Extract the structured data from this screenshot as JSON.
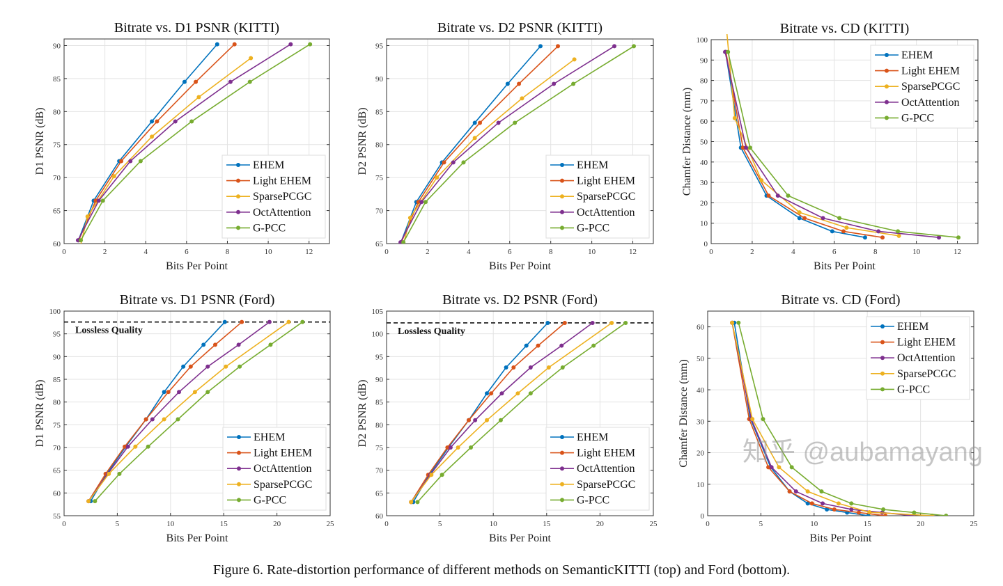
{
  "caption": "Figure 6. Rate-distortion performance of different methods on SemanticKITTI (top) and Ford (bottom).",
  "watermark": "知乎 @aubamayang",
  "chart_data": [
    {
      "type": "line",
      "title": "Bitrate vs. D1 PSNR (KITTI)",
      "xlabel": "Bits Per Point",
      "ylabel": "D1 PSNR (dB)",
      "xlim": [
        0,
        13
      ],
      "ylim": [
        60,
        91
      ],
      "xticks": [
        0,
        2,
        4,
        6,
        8,
        10,
        12
      ],
      "yticks": [
        60,
        65,
        70,
        75,
        80,
        85,
        90
      ],
      "grid": true,
      "legend": "bottom-right",
      "series": [
        {
          "name": "EHEM",
          "color": "#0072BD",
          "x": [
            0.7,
            1.45,
            2.7,
            4.3,
            5.9,
            7.5
          ],
          "y": [
            60.5,
            66.5,
            72.5,
            78.5,
            84.5,
            90.2
          ]
        },
        {
          "name": "Light EHEM",
          "color": "#D95319",
          "x": [
            0.72,
            1.55,
            2.8,
            4.55,
            6.45,
            8.35
          ],
          "y": [
            60.5,
            66.5,
            72.5,
            78.5,
            84.5,
            90.2
          ]
        },
        {
          "name": "SparsePCGC",
          "color": "#EDB120",
          "x": [
            0.75,
            1.15,
            2.45,
            4.3,
            6.6,
            9.15
          ],
          "y": [
            59.0,
            64.1,
            70.2,
            76.2,
            82.2,
            88.1
          ]
        },
        {
          "name": "OctAttention",
          "color": "#7E2F8E",
          "x": [
            0.68,
            1.7,
            3.25,
            5.45,
            8.15,
            11.1
          ],
          "y": [
            60.5,
            66.5,
            72.5,
            78.5,
            84.5,
            90.2
          ]
        },
        {
          "name": "G-PCC",
          "color": "#77AC30",
          "x": [
            0.82,
            1.9,
            3.75,
            6.25,
            9.1,
            12.05
          ],
          "y": [
            60.5,
            66.5,
            72.5,
            78.5,
            84.5,
            90.2
          ]
        }
      ]
    },
    {
      "type": "line",
      "title": "Bitrate vs. D2 PSNR (KITTI)",
      "xlabel": "Bits Per Point",
      "ylabel": "D2 PSNR (dB)",
      "xlim": [
        0,
        13
      ],
      "ylim": [
        65,
        96
      ],
      "xticks": [
        0,
        2,
        4,
        6,
        8,
        10,
        12
      ],
      "yticks": [
        65,
        70,
        75,
        80,
        85,
        90,
        95
      ],
      "grid": true,
      "legend": "bottom-right",
      "series": [
        {
          "name": "EHEM",
          "color": "#0072BD",
          "x": [
            0.7,
            1.45,
            2.7,
            4.3,
            5.9,
            7.5
          ],
          "y": [
            65.2,
            71.3,
            77.3,
            83.3,
            89.2,
            94.9
          ]
        },
        {
          "name": "Light EHEM",
          "color": "#D95319",
          "x": [
            0.72,
            1.55,
            2.8,
            4.55,
            6.45,
            8.35
          ],
          "y": [
            65.2,
            71.3,
            77.3,
            83.3,
            89.2,
            94.9
          ]
        },
        {
          "name": "SparsePCGC",
          "color": "#EDB120",
          "x": [
            0.75,
            1.15,
            2.45,
            4.3,
            6.6,
            9.15
          ],
          "y": [
            64.0,
            68.9,
            75.0,
            81.0,
            87.0,
            92.9
          ]
        },
        {
          "name": "OctAttention",
          "color": "#7E2F8E",
          "x": [
            0.68,
            1.7,
            3.25,
            5.45,
            8.15,
            11.1
          ],
          "y": [
            65.2,
            71.3,
            77.3,
            83.3,
            89.2,
            94.9
          ]
        },
        {
          "name": "G-PCC",
          "color": "#77AC30",
          "x": [
            0.82,
            1.9,
            3.75,
            6.25,
            9.1,
            12.05
          ],
          "y": [
            65.2,
            71.3,
            77.3,
            83.3,
            89.2,
            94.9
          ]
        }
      ]
    },
    {
      "type": "line",
      "title": "Bitrate vs. CD (KITTI)",
      "xlabel": "Bits Per Point",
      "ylabel": "Chamfer Distance (mm)",
      "xlim": [
        0,
        13
      ],
      "ylim": [
        0,
        100
      ],
      "xticks": [
        0,
        2,
        4,
        6,
        8,
        10,
        12
      ],
      "yticks": [
        0,
        10,
        20,
        30,
        40,
        50,
        60,
        70,
        80,
        90,
        100
      ],
      "grid": true,
      "legend": "top-right",
      "series": [
        {
          "name": "EHEM",
          "color": "#0072BD",
          "x": [
            0.7,
            1.45,
            2.7,
            4.3,
            5.9,
            7.5
          ],
          "y": [
            94,
            47,
            23.5,
            12.5,
            6,
            3
          ]
        },
        {
          "name": "Light EHEM",
          "color": "#D95319",
          "x": [
            0.72,
            1.55,
            2.8,
            4.55,
            6.45,
            8.35
          ],
          "y": [
            94,
            47,
            23.5,
            12.5,
            6,
            3
          ]
        },
        {
          "name": "SparsePCGC",
          "color": "#EDB120",
          "x": [
            0.75,
            1.15,
            2.45,
            4.3,
            6.6,
            9.15
          ],
          "y": [
            105,
            61.5,
            31,
            15.3,
            7.8,
            3.8
          ]
        },
        {
          "name": "OctAttention",
          "color": "#7E2F8E",
          "x": [
            0.68,
            1.7,
            3.25,
            5.45,
            8.15,
            11.1
          ],
          "y": [
            94,
            47,
            23.5,
            12.5,
            6,
            3
          ]
        },
        {
          "name": "G-PCC",
          "color": "#77AC30",
          "x": [
            0.82,
            1.9,
            3.75,
            6.25,
            9.1,
            12.05
          ],
          "y": [
            94,
            47,
            23.5,
            12.5,
            6,
            3
          ]
        }
      ]
    },
    {
      "type": "line",
      "title": "Bitrate vs. D1 PSNR (Ford)",
      "xlabel": "Bits Per Point",
      "ylabel": "D1 PSNR (dB)",
      "xlim": [
        0,
        25
      ],
      "ylim": [
        55,
        100
      ],
      "xticks": [
        0,
        5,
        10,
        15,
        20,
        25
      ],
      "yticks": [
        55,
        60,
        65,
        70,
        75,
        80,
        85,
        90,
        95,
        100
      ],
      "grid": true,
      "legend": "bottom-right",
      "reference_line": {
        "y": 97.6,
        "label": "Lossless Quality"
      },
      "series": [
        {
          "name": "EHEM",
          "color": "#0072BD",
          "x": [
            2.5,
            4.0,
            5.8,
            7.7,
            9.4,
            11.2,
            13.1,
            15.1
          ],
          "y": [
            58.2,
            64.2,
            70.2,
            76.2,
            82.2,
            87.8,
            92.6,
            97.6
          ]
        },
        {
          "name": "Light EHEM",
          "color": "#D95319",
          "x": [
            2.3,
            3.9,
            5.7,
            7.7,
            9.8,
            11.9,
            14.2,
            16.7
          ],
          "y": [
            58.2,
            64.2,
            70.2,
            76.2,
            82.2,
            87.8,
            92.6,
            97.6
          ]
        },
        {
          "name": "OctAttention",
          "color": "#7E2F8E",
          "x": [
            2.3,
            4.1,
            6.0,
            8.3,
            10.8,
            13.5,
            16.4,
            19.3
          ],
          "y": [
            58.2,
            64.2,
            70.2,
            76.2,
            82.2,
            87.8,
            92.6,
            97.6
          ]
        },
        {
          "name": "SparsePCGC",
          "color": "#EDB120",
          "x": [
            2.3,
            4.2,
            6.7,
            9.4,
            12.3,
            15.2,
            21.1
          ],
          "y": [
            58.2,
            64.2,
            70.2,
            76.2,
            82.2,
            87.8,
            97.6
          ]
        },
        {
          "name": "G-PCC",
          "color": "#77AC30",
          "x": [
            2.9,
            5.2,
            7.9,
            10.7,
            13.5,
            16.5,
            19.4,
            22.4
          ],
          "y": [
            58.2,
            64.2,
            70.2,
            76.2,
            82.2,
            87.8,
            92.6,
            97.6
          ]
        }
      ]
    },
    {
      "type": "line",
      "title": "Bitrate vs. D2 PSNR (Ford)",
      "xlabel": "Bits Per Point",
      "ylabel": "D2 PSNR (dB)",
      "xlim": [
        0,
        25
      ],
      "ylim": [
        60,
        105
      ],
      "xticks": [
        0,
        5,
        10,
        15,
        20,
        25
      ],
      "yticks": [
        60,
        65,
        70,
        75,
        80,
        85,
        90,
        95,
        100,
        105
      ],
      "grid": true,
      "legend": "bottom-right",
      "reference_line": {
        "y": 102.4,
        "label": "Lossless Quality"
      },
      "series": [
        {
          "name": "EHEM",
          "color": "#0072BD",
          "x": [
            2.5,
            4.0,
            5.8,
            7.7,
            9.4,
            11.2,
            13.1,
            15.1
          ],
          "y": [
            63,
            69,
            75,
            81,
            86.9,
            92.6,
            97.4,
            102.4
          ]
        },
        {
          "name": "Light EHEM",
          "color": "#D95319",
          "x": [
            2.3,
            3.9,
            5.7,
            7.7,
            9.8,
            11.9,
            14.2,
            16.7
          ],
          "y": [
            63,
            69,
            75,
            81,
            86.9,
            92.6,
            97.4,
            102.4
          ]
        },
        {
          "name": "OctAttention",
          "color": "#7E2F8E",
          "x": [
            2.3,
            4.1,
            6.0,
            8.3,
            10.8,
            13.5,
            16.4,
            19.3
          ],
          "y": [
            63,
            69,
            75,
            81,
            86.9,
            92.6,
            97.4,
            102.4
          ]
        },
        {
          "name": "SparsePCGC",
          "color": "#EDB120",
          "x": [
            2.3,
            4.2,
            6.7,
            9.4,
            12.3,
            15.2,
            21.1
          ],
          "y": [
            63,
            69,
            75,
            81,
            86.9,
            92.6,
            102.4
          ]
        },
        {
          "name": "G-PCC",
          "color": "#77AC30",
          "x": [
            2.9,
            5.2,
            7.9,
            10.7,
            13.5,
            16.5,
            19.4,
            22.4
          ],
          "y": [
            63,
            69,
            75,
            81,
            86.9,
            92.6,
            97.4,
            102.4
          ]
        }
      ]
    },
    {
      "type": "line",
      "title": "Bitrate vs. CD (Ford)",
      "xlabel": "Bits Per Point",
      "ylabel": "Chamfer Distance (mm)",
      "xlim": [
        0,
        25
      ],
      "ylim": [
        0,
        65
      ],
      "xticks": [
        0,
        5,
        10,
        15,
        20,
        25
      ],
      "yticks": [
        0,
        10,
        20,
        30,
        40,
        50,
        60
      ],
      "grid": true,
      "legend": "top-right",
      "series": [
        {
          "name": "EHEM",
          "color": "#0072BD",
          "x": [
            2.5,
            4.0,
            5.9,
            7.7,
            9.4,
            11.2,
            13.1,
            15.1
          ],
          "y": [
            61.3,
            31,
            15.5,
            7.7,
            3.9,
            2,
            1,
            0
          ]
        },
        {
          "name": "Light EHEM",
          "color": "#D95319",
          "x": [
            2.3,
            3.9,
            5.7,
            7.7,
            9.8,
            11.9,
            14.2,
            16.7
          ],
          "y": [
            61.3,
            30.7,
            15.4,
            7.7,
            3.9,
            2,
            1,
            0
          ]
        },
        {
          "name": "OctAttention",
          "color": "#7E2F8E",
          "x": [
            2.3,
            4.1,
            6.0,
            8.3,
            10.8,
            13.5,
            16.4,
            19.3
          ],
          "y": [
            61.3,
            30.7,
            15.4,
            7.7,
            3.9,
            2,
            1,
            0
          ]
        },
        {
          "name": "SparsePCGC",
          "color": "#EDB120",
          "x": [
            2.3,
            4.2,
            6.7,
            9.4,
            12.3,
            15.2,
            21.1
          ],
          "y": [
            61.3,
            30.7,
            15.4,
            7.7,
            3.9,
            1.1,
            0
          ]
        },
        {
          "name": "G-PCC",
          "color": "#77AC30",
          "x": [
            2.9,
            5.2,
            7.9,
            10.7,
            13.5,
            16.5,
            19.4,
            22.4
          ],
          "y": [
            61.3,
            30.7,
            15.4,
            7.7,
            3.9,
            2,
            1,
            0
          ]
        }
      ]
    }
  ]
}
